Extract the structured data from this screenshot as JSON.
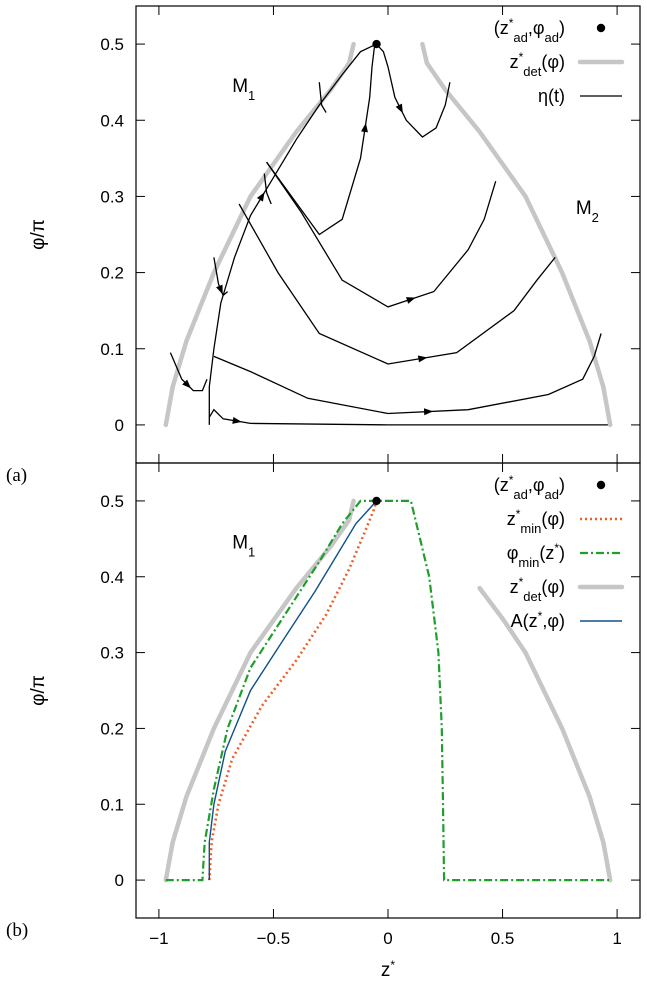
{
  "chart_data": [
    {
      "panel_label": "(a)",
      "type": "line",
      "xlim": [
        -1.1,
        1.1
      ],
      "ylim": [
        -0.05,
        0.55
      ],
      "y_ticks": [
        0,
        0.1,
        0.2,
        0.3,
        0.4,
        0.5
      ],
      "y_tick_labels": [
        "0",
        "0.1",
        "0.2",
        "0.3",
        "0.4",
        "0.5"
      ],
      "ylabel": "φ/π",
      "region_labels": [
        {
          "text": "M",
          "sub": "1",
          "x": -0.68,
          "y": 0.445
        },
        {
          "text": "M",
          "sub": "2",
          "x": 0.82,
          "y": 0.285
        }
      ],
      "legend": [
        {
          "label": "(z*ad,φad)",
          "base": "(z",
          "s1": "*",
          "sub1": "ad",
          "mid": ",φ",
          "sub2": "ad",
          "end": ")",
          "style": "point"
        },
        {
          "label": "z*det(φ)",
          "base": "z",
          "s1": "*",
          "sub1": "det",
          "end": "(φ)",
          "style": "thick-gray"
        },
        {
          "label": "η(t)",
          "base": "η(t)",
          "style": "thin-black"
        }
      ],
      "point": {
        "x": -0.05,
        "y": 0.5
      },
      "series": [
        {
          "style": "thick-gray",
          "points": [
            [
              -0.97,
              0
            ],
            [
              -0.94,
              0.05
            ],
            [
              -0.88,
              0.11
            ],
            [
              -0.76,
              0.2
            ],
            [
              -0.6,
              0.3
            ],
            [
              -0.4,
              0.385
            ],
            [
              -0.25,
              0.44
            ],
            [
              -0.17,
              0.475
            ],
            [
              -0.15,
              0.5
            ]
          ]
        },
        {
          "style": "thick-gray",
          "points": [
            [
              0.97,
              0
            ],
            [
              0.94,
              0.05
            ],
            [
              0.88,
              0.11
            ],
            [
              0.76,
              0.2
            ],
            [
              0.6,
              0.3
            ],
            [
              0.4,
              0.385
            ],
            [
              0.25,
              0.44
            ],
            [
              0.17,
              0.475
            ],
            [
              0.15,
              0.5
            ]
          ]
        },
        {
          "style": "thin-black",
          "points": [
            [
              -0.78,
              0.0
            ],
            [
              -0.78,
              0.05
            ],
            [
              -0.76,
              0.1
            ],
            [
              -0.73,
              0.16
            ],
            [
              -0.67,
              0.22
            ],
            [
              -0.6,
              0.275
            ],
            [
              -0.5,
              0.325
            ],
            [
              -0.4,
              0.375
            ],
            [
              -0.3,
              0.42
            ],
            [
              -0.2,
              0.46
            ],
            [
              -0.12,
              0.49
            ],
            [
              -0.05,
              0.5
            ]
          ]
        },
        {
          "style": "thin-black",
          "points": [
            [
              -0.05,
              0.5
            ],
            [
              -0.02,
              0.49
            ],
            [
              0.0,
              0.47
            ],
            [
              0.03,
              0.43
            ],
            [
              0.08,
              0.4
            ],
            [
              0.15,
              0.378
            ],
            [
              0.21,
              0.39
            ],
            [
              0.25,
              0.42
            ],
            [
              0.27,
              0.45
            ]
          ]
        },
        {
          "style": "thin-black",
          "points": [
            [
              -0.53,
              0.345
            ],
            [
              -0.3,
              0.25
            ],
            [
              -0.2,
              0.27
            ],
            [
              -0.12,
              0.35
            ],
            [
              -0.08,
              0.43
            ],
            [
              -0.07,
              0.47
            ],
            [
              -0.06,
              0.495
            ],
            [
              -0.05,
              0.5
            ]
          ]
        },
        {
          "style": "thin-black",
          "points": [
            [
              -0.53,
              0.345
            ],
            [
              -0.38,
              0.28
            ],
            [
              -0.2,
              0.19
            ],
            [
              0.0,
              0.155
            ],
            [
              0.2,
              0.175
            ],
            [
              0.35,
              0.23
            ],
            [
              0.42,
              0.27
            ],
            [
              0.47,
              0.32
            ]
          ]
        },
        {
          "style": "thin-black",
          "points": [
            [
              -0.65,
              0.29
            ],
            [
              -0.48,
              0.2
            ],
            [
              -0.3,
              0.12
            ],
            [
              0.0,
              0.08
            ],
            [
              0.3,
              0.095
            ],
            [
              0.55,
              0.15
            ],
            [
              0.65,
              0.19
            ],
            [
              0.73,
              0.22
            ]
          ]
        },
        {
          "style": "thin-black",
          "points": [
            [
              -0.76,
              0.09
            ],
            [
              -0.6,
              0.07
            ],
            [
              -0.35,
              0.035
            ],
            [
              0.0,
              0.015
            ],
            [
              0.35,
              0.02
            ],
            [
              0.7,
              0.04
            ],
            [
              0.85,
              0.06
            ],
            [
              0.9,
              0.09
            ],
            [
              0.93,
              0.12
            ]
          ]
        },
        {
          "style": "thin-black",
          "points": [
            [
              -0.78,
              0.01
            ],
            [
              -0.76,
              0.02
            ],
            [
              -0.72,
              0.008
            ],
            [
              -0.6,
              0.002
            ],
            [
              0.0,
              0.0
            ],
            [
              0.6,
              0.0
            ],
            [
              0.96,
              0.0
            ]
          ]
        },
        {
          "style": "thin-black",
          "points": [
            [
              -0.95,
              0.095
            ],
            [
              -0.9,
              0.06
            ],
            [
              -0.85,
              0.045
            ],
            [
              -0.81,
              0.045
            ],
            [
              -0.79,
              0.06
            ]
          ]
        },
        {
          "style": "thin-black",
          "points": [
            [
              -0.76,
              0.22
            ],
            [
              -0.74,
              0.185
            ],
            [
              -0.72,
              0.17
            ],
            [
              -0.7,
              0.175
            ]
          ]
        },
        {
          "style": "thin-black",
          "points": [
            [
              -0.54,
              0.33
            ],
            [
              -0.53,
              0.305
            ],
            [
              -0.51,
              0.29
            ]
          ]
        },
        {
          "style": "thin-black",
          "points": [
            [
              -0.3,
              0.45
            ],
            [
              -0.29,
              0.42
            ],
            [
              -0.27,
              0.41
            ]
          ]
        }
      ]
    },
    {
      "panel_label": "(b)",
      "type": "line",
      "xlim": [
        -1.1,
        1.1
      ],
      "ylim": [
        -0.05,
        0.55
      ],
      "x_ticks": [
        -1,
        -0.5,
        0,
        0.5,
        1
      ],
      "x_tick_labels": [
        "−1",
        "−0.5",
        "0",
        "0.5",
        "1"
      ],
      "y_ticks": [
        0,
        0.1,
        0.2,
        0.3,
        0.4,
        0.5
      ],
      "y_tick_labels": [
        "0",
        "0.1",
        "0.2",
        "0.3",
        "0.4",
        "0.5"
      ],
      "ylabel": "φ/π",
      "xlabel": "z*",
      "region_labels": [
        {
          "text": "M",
          "sub": "1",
          "x": -0.68,
          "y": 0.445
        }
      ],
      "legend": [
        {
          "label": "(z*ad,φad)",
          "base": "(z",
          "s1": "*",
          "sub1": "ad",
          "mid": ",φ",
          "sub2": "ad",
          "end": ")",
          "style": "point"
        },
        {
          "label": "z*min(φ)",
          "base": "z",
          "s1": "*",
          "sub1": "min",
          "end": "(φ)",
          "style": "orange-dotted"
        },
        {
          "label": "φmin(z*)",
          "base": "φ",
          "sub1": "min",
          "mid": "(z",
          "s2": "*",
          "end": ")",
          "style": "green-dashdot"
        },
        {
          "label": "z*det(φ)",
          "base": "z",
          "s1": "*",
          "sub1": "det",
          "end": "(φ)",
          "style": "thick-gray"
        },
        {
          "label": "A(z*,φ)",
          "base": "A(z",
          "s1": "*",
          "end": ",φ)",
          "style": "thin-blue"
        }
      ],
      "point": {
        "x": -0.05,
        "y": 0.5
      },
      "series": [
        {
          "style": "thick-gray",
          "points": [
            [
              -0.97,
              0
            ],
            [
              -0.94,
              0.05
            ],
            [
              -0.88,
              0.11
            ],
            [
              -0.76,
              0.2
            ],
            [
              -0.6,
              0.3
            ],
            [
              -0.4,
              0.385
            ],
            [
              -0.25,
              0.44
            ],
            [
              -0.17,
              0.475
            ],
            [
              -0.15,
              0.5
            ]
          ]
        },
        {
          "style": "thick-gray",
          "points": [
            [
              0.97,
              0
            ],
            [
              0.94,
              0.05
            ],
            [
              0.88,
              0.11
            ],
            [
              0.76,
              0.2
            ],
            [
              0.6,
              0.3
            ],
            [
              0.5,
              0.345
            ],
            [
              0.4,
              0.385
            ]
          ]
        },
        {
          "style": "green-dashdot",
          "points": [
            [
              -0.97,
              0
            ],
            [
              -0.81,
              0
            ],
            [
              -0.8,
              0.05
            ],
            [
              -0.76,
              0.12
            ],
            [
              -0.7,
              0.2
            ],
            [
              -0.6,
              0.28
            ],
            [
              -0.45,
              0.35
            ],
            [
              -0.3,
              0.42
            ],
            [
              -0.2,
              0.47
            ],
            [
              -0.12,
              0.5
            ],
            [
              0.1,
              0.5
            ],
            [
              0.18,
              0.4
            ],
            [
              0.22,
              0.3
            ],
            [
              0.235,
              0.2
            ],
            [
              0.24,
              0.1
            ],
            [
              0.245,
              0.0
            ],
            [
              0.97,
              0
            ]
          ]
        },
        {
          "style": "orange-dotted",
          "points": [
            [
              -0.78,
              0
            ],
            [
              -0.77,
              0.05
            ],
            [
              -0.74,
              0.1
            ],
            [
              -0.68,
              0.16
            ],
            [
              -0.55,
              0.23
            ],
            [
              -0.4,
              0.29
            ],
            [
              -0.27,
              0.35
            ],
            [
              -0.17,
              0.41
            ],
            [
              -0.1,
              0.46
            ],
            [
              -0.06,
              0.49
            ],
            [
              -0.05,
              0.5
            ]
          ]
        },
        {
          "style": "thin-blue",
          "points": [
            [
              -0.78,
              0
            ],
            [
              -0.78,
              0.05
            ],
            [
              -0.76,
              0.1
            ],
            [
              -0.71,
              0.17
            ],
            [
              -0.6,
              0.25
            ],
            [
              -0.45,
              0.32
            ],
            [
              -0.32,
              0.38
            ],
            [
              -0.22,
              0.43
            ],
            [
              -0.14,
              0.47
            ],
            [
              -0.08,
              0.49
            ],
            [
              -0.05,
              0.5
            ]
          ]
        }
      ]
    }
  ]
}
